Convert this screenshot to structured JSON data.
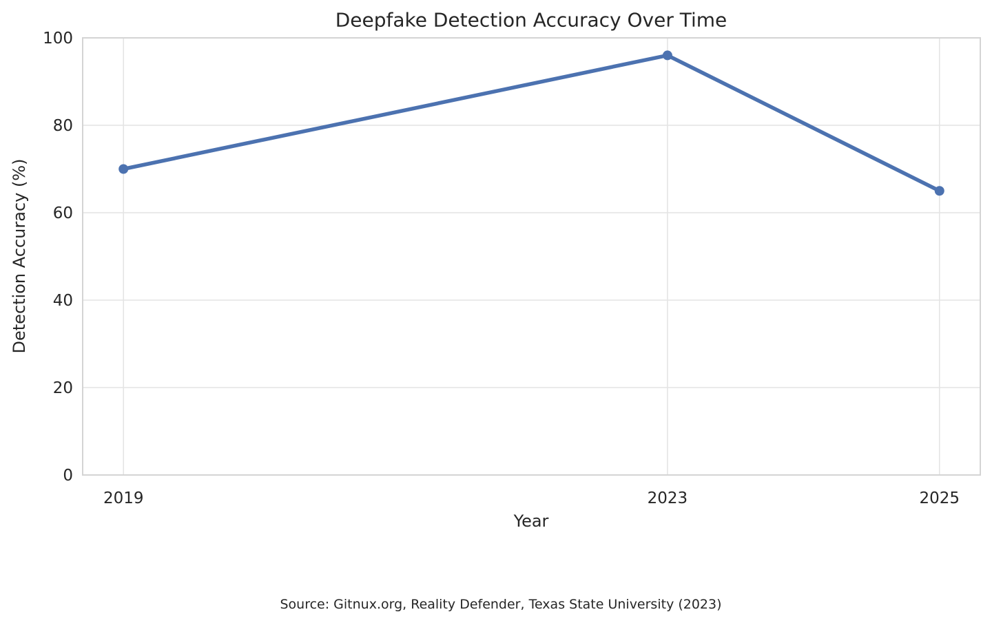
{
  "chart_data": {
    "type": "line",
    "title": "Deepfake Detection Accuracy Over Time",
    "xlabel": "Year",
    "ylabel": "Detection Accuracy (%)",
    "source_note": "Source: Gitnux.org, Reality Defender, Texas State University (2023)",
    "x": [
      2019,
      2023,
      2025
    ],
    "series": [
      {
        "name": "Detection Accuracy",
        "values": [
          70,
          96,
          65
        ]
      }
    ],
    "xticks": [
      2019,
      2023,
      2025
    ],
    "yticks": [
      0,
      20,
      40,
      60,
      80,
      100
    ],
    "xlim": [
      2018.7,
      2025.3
    ],
    "ylim": [
      0,
      100
    ],
    "grid": true,
    "legend": false,
    "line_color": "#4C72B0",
    "marker": "circle",
    "marker_color": "#4C72B0",
    "grid_color": "#e4e4e4",
    "spine_color": "#d4d4d4",
    "text_color": "#262626",
    "background_color": "#ffffff"
  }
}
